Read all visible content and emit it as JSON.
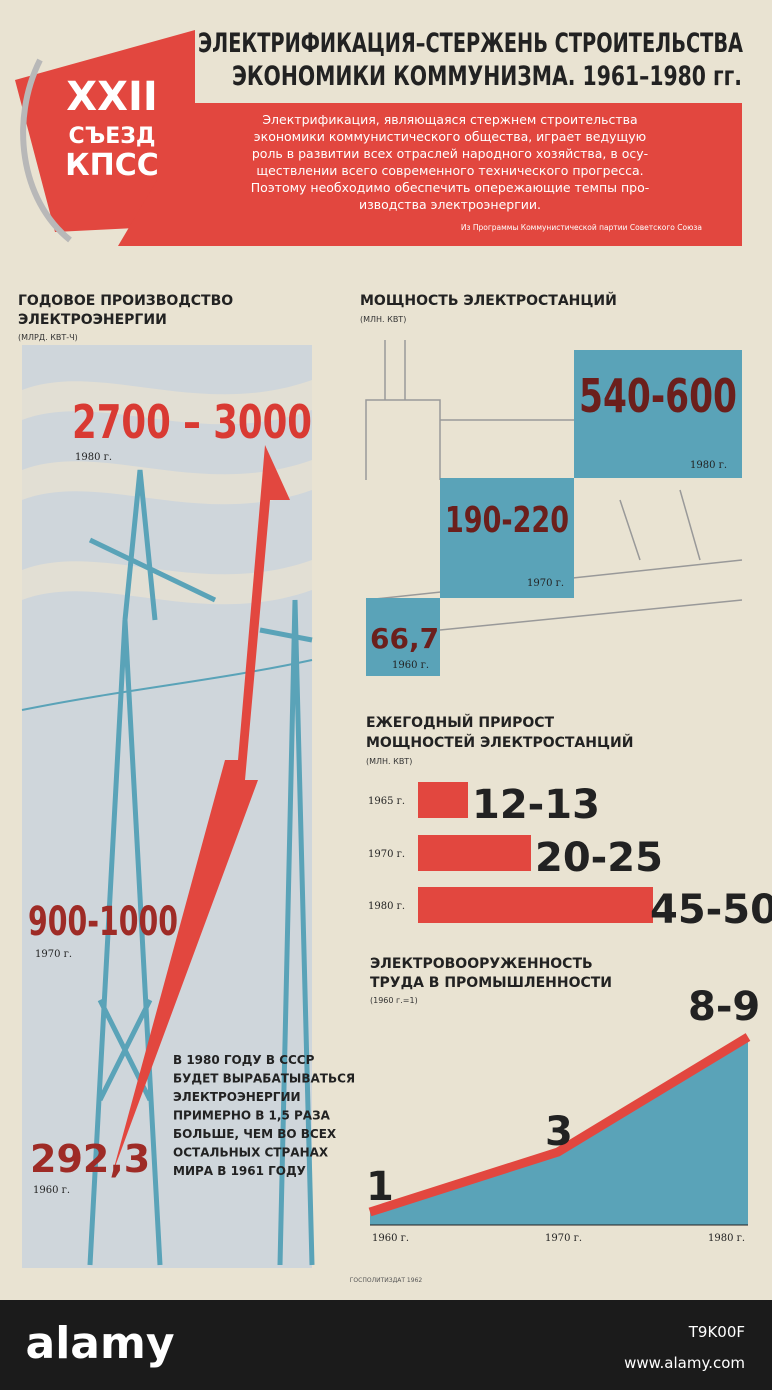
{
  "header": {
    "emblem": [
      "XXII",
      "СЪЕЗД",
      "КПСС"
    ],
    "title": [
      "ЭЛЕКТРИФИКАЦИЯ–СТЕРЖЕНЬ СТРОИТЕЛЬСТВА",
      "ЭКОНОМИКИ КОММУНИЗМА. 1961–1980 гг."
    ],
    "quote": [
      "Электрификация, являющаяся стержнем строительства",
      "экономики коммунистического общества, играет ведущую",
      "роль в развитии всех отраслей народного хозяйства, в осу-",
      "ществлении всего современного технического прогресса.",
      "Поэтому необходимо обеспечить опережающие темпы про-",
      "изводства электроэнергии."
    ],
    "source": "Из Программы Коммунистической партии Советского Союза"
  },
  "annual_production": {
    "title": [
      "ГОДОВОЕ ПРОИЗВОДСТВО",
      "ЭЛЕКТРОЭНЕРГИИ"
    ],
    "unit": "(МЛРД. КВТ-Ч)",
    "items": [
      {
        "value": "2700 – 3000",
        "year": "1980 г."
      },
      {
        "value": "900-1000",
        "year": "1970 г."
      },
      {
        "value": "292,3",
        "year": "1960 г."
      }
    ],
    "note": [
      "В 1980 ГОДУ В СССР",
      "БУДЕТ ВЫРАБАТЫВАТЬСЯ",
      "ЭЛЕКТРОЭНЕРГИИ",
      "ПРИМЕРНО В 1,5 РАЗА",
      "БОЛЬШЕ, ЧЕМ ВО ВСЕХ",
      "ОСТАЛЬНЫХ СТРАНАХ",
      "МИРА В 1961 ГОДУ"
    ]
  },
  "capacity": {
    "title": "МОЩНОСТЬ ЭЛЕКТРОСТАНЦИЙ",
    "unit": "(МЛН. КВТ)",
    "items": [
      {
        "value": "540-600",
        "year": "1980 г."
      },
      {
        "value": "190-220",
        "year": "1970 г."
      },
      {
        "value": "66,7",
        "year": "1960 г."
      }
    ]
  },
  "growth": {
    "title": [
      "ЕЖЕГОДНЫЙ ПРИРОСТ",
      "МОЩНОСТЕЙ ЭЛЕКТРОСТАНЦИЙ"
    ],
    "unit": "(МЛН. КВТ)",
    "rows": [
      {
        "year": "1965 г.",
        "value": "12-13"
      },
      {
        "year": "1970 г.",
        "value": "20-25"
      },
      {
        "year": "1980 г.",
        "value": "45-50"
      }
    ]
  },
  "electrification": {
    "title": [
      "ЭЛЕКТРОВООРУЖЕННОСТЬ",
      "ТРУДА В ПРОМЫШЛЕННОСТИ"
    ],
    "unit": "(1960 г.=1)",
    "points": [
      {
        "label": "1",
        "year": "1960 г."
      },
      {
        "label": "3",
        "year": "1970 г."
      },
      {
        "label": "8-9",
        "year": "1980 г."
      }
    ]
  },
  "footer": "ГОСПОЛИТИЗДАТ 1962",
  "watermark": {
    "brand": "alamy",
    "id": "T9K00F",
    "url": "www.alamy.com"
  }
}
